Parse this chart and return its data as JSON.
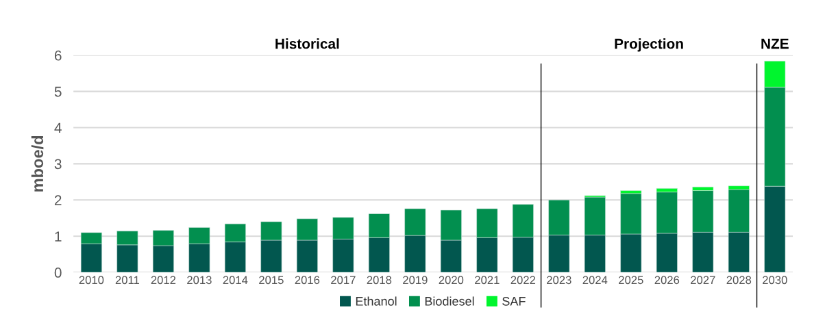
{
  "chart_data": {
    "type": "bar",
    "stacked": true,
    "ylabel": "mboe/d",
    "categories": [
      "2010",
      "2011",
      "2012",
      "2013",
      "2014",
      "2015",
      "2016",
      "2017",
      "2018",
      "2019",
      "2020",
      "2021",
      "2022",
      "2023",
      "2024",
      "2025",
      "2026",
      "2027",
      "2028",
      "2030"
    ],
    "series": [
      {
        "name": "Ethanol",
        "color": "#02574f",
        "values": [
          0.79,
          0.76,
          0.74,
          0.79,
          0.84,
          0.89,
          0.89,
          0.92,
          0.96,
          1.02,
          0.89,
          0.96,
          0.97,
          1.03,
          1.03,
          1.06,
          1.08,
          1.11,
          1.11,
          2.38
        ]
      },
      {
        "name": "Biodiesel",
        "color": "#028f4f",
        "values": [
          0.31,
          0.38,
          0.42,
          0.45,
          0.5,
          0.51,
          0.59,
          0.6,
          0.66,
          0.74,
          0.83,
          0.8,
          0.91,
          0.97,
          1.05,
          1.12,
          1.14,
          1.15,
          1.18,
          2.74
        ]
      },
      {
        "name": "SAF",
        "color": "#00f52e",
        "values": [
          null,
          null,
          null,
          null,
          null,
          null,
          null,
          null,
          null,
          null,
          null,
          null,
          null,
          null,
          0.04,
          0.08,
          0.1,
          0.1,
          0.1,
          0.72
        ]
      }
    ],
    "ylim": [
      0,
      6
    ],
    "yticks": [
      0,
      1,
      2,
      3,
      4,
      5,
      6
    ],
    "grid": "y",
    "legend": "bottom",
    "annotations": [
      "Historical",
      "Projection",
      "NZE"
    ]
  }
}
